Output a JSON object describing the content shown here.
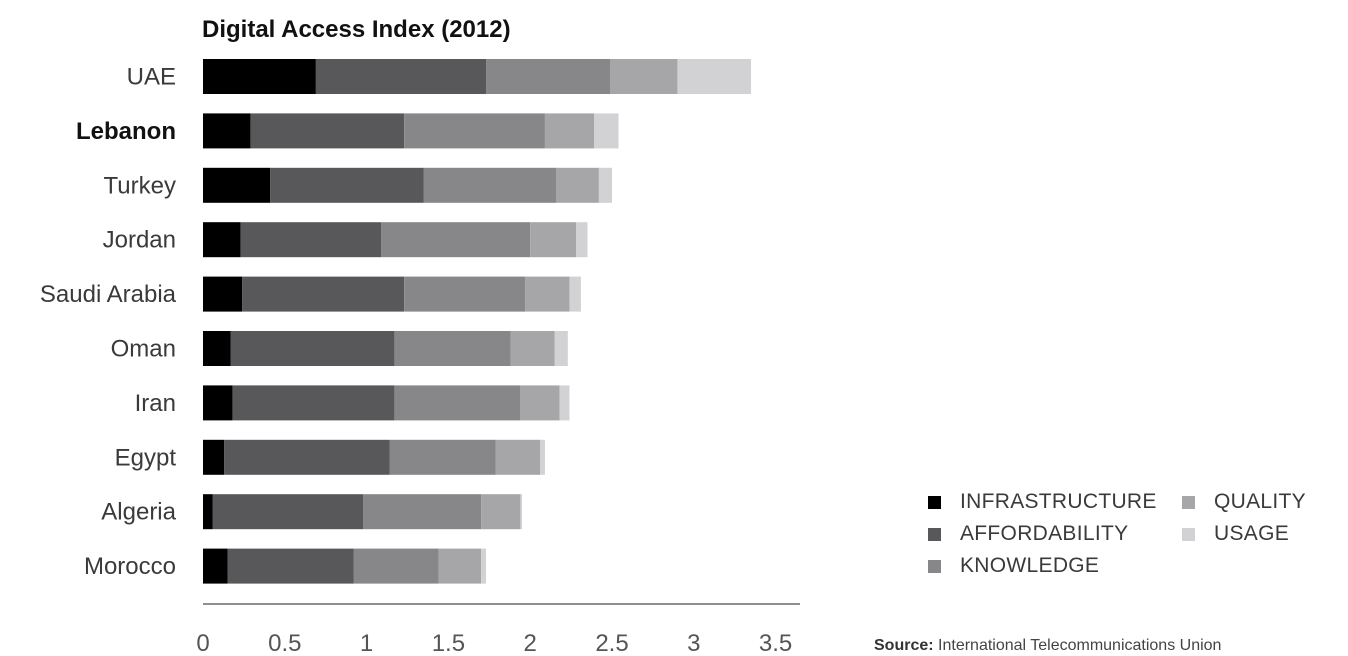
{
  "chart_data": {
    "type": "bar",
    "orientation": "horizontal",
    "stacked": true,
    "title": "Digital Access Index (2012)",
    "categories": [
      "UAE",
      "Lebanon",
      "Turkey",
      "Jordan",
      "Saudi Arabia",
      "Oman",
      "Iran",
      "Egypt",
      "Algeria",
      "Morocco"
    ],
    "highlighted_category": "Lebanon",
    "series": [
      {
        "name": "INFRASTRUCTURE",
        "color": "#000000",
        "values": [
          0.69,
          0.29,
          0.41,
          0.23,
          0.24,
          0.17,
          0.18,
          0.13,
          0.06,
          0.15
        ]
      },
      {
        "name": "AFFORDABILITY",
        "color": "#58585a",
        "values": [
          1.04,
          0.94,
          0.94,
          0.86,
          0.99,
          1.0,
          0.99,
          1.01,
          0.92,
          0.77
        ]
      },
      {
        "name": "KNOWLEDGE",
        "color": "#87878a",
        "values": [
          0.76,
          0.86,
          0.81,
          0.91,
          0.74,
          0.71,
          0.77,
          0.65,
          0.72,
          0.52
        ]
      },
      {
        "name": "QUALITY",
        "color": "#a6a6a8",
        "values": [
          0.41,
          0.3,
          0.26,
          0.28,
          0.27,
          0.27,
          0.24,
          0.27,
          0.24,
          0.26
        ]
      },
      {
        "name": "USAGE",
        "color": "#d2d2d4",
        "values": [
          0.45,
          0.15,
          0.08,
          0.07,
          0.07,
          0.08,
          0.06,
          0.03,
          0.01,
          0.03
        ]
      }
    ],
    "xlim": [
      0,
      3.75
    ],
    "xticks": [
      0,
      0.5,
      1,
      1.5,
      2,
      2.5,
      3,
      3.5
    ],
    "xtick_labels": [
      "0",
      "0.5",
      "1",
      "1.5",
      "2",
      "2.5",
      "3",
      "3.5"
    ],
    "xlabel": "",
    "ylabel": "",
    "grid": false,
    "legend_position": "bottom-right"
  },
  "legend": {
    "infrastructure": "INFRASTRUCTURE",
    "affordability": "AFFORDABILITY",
    "knowledge": "KNOWLEDGE",
    "quality": "QUALITY",
    "usage": "USAGE"
  },
  "source": {
    "label": "Source:",
    "text": "International Telecommunications Union"
  }
}
